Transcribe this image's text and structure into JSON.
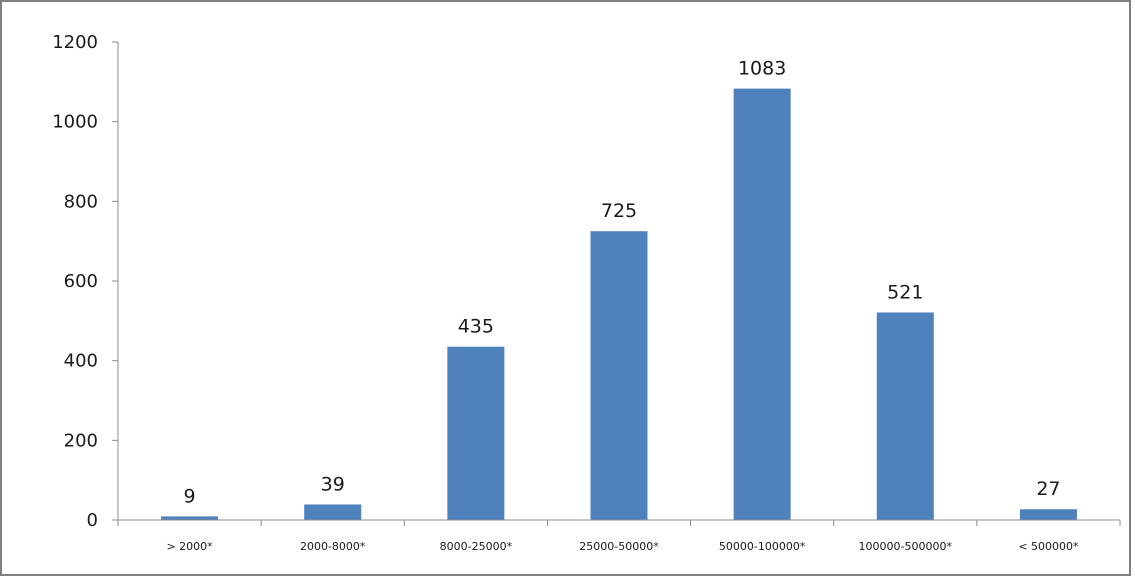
{
  "chart_data": {
    "type": "bar",
    "title": "",
    "xlabel": "",
    "ylabel": "",
    "categories": [
      "> 2000*",
      "2000-8000*",
      "8000-25000*",
      "25000-50000*",
      "50000-100000*",
      "100000-500000*",
      "< 500000*"
    ],
    "values": [
      9,
      39,
      435,
      725,
      1083,
      521,
      27
    ],
    "data_labels": [
      "9",
      "39",
      "435",
      "725",
      "1083",
      "521",
      "27"
    ],
    "ylim": [
      0,
      1200
    ],
    "y_ticks": [
      0,
      200,
      400,
      600,
      800,
      1000,
      1200
    ],
    "y_tick_labels": [
      "0",
      "200",
      "400",
      "600",
      "800",
      "1000",
      "1200"
    ],
    "grid": false,
    "legend": "none",
    "bar_color": "#4f81bd"
  }
}
